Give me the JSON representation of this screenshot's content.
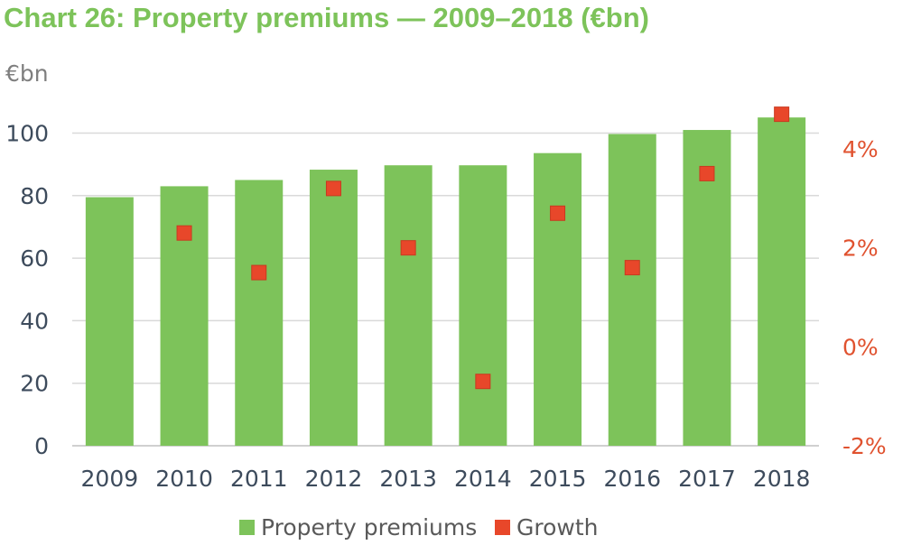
{
  "chart_data": {
    "type": "bar",
    "title": "Chart 26: Property premiums — 2009–2018 (€bn)",
    "y_unit_label": "€bn",
    "categories": [
      "2009",
      "2010",
      "2011",
      "2012",
      "2013",
      "2014",
      "2015",
      "2016",
      "2017",
      "2018"
    ],
    "series": [
      {
        "name": "Property premiums",
        "type": "bar",
        "axis": "left",
        "values": [
          79.5,
          83,
          85,
          88.3,
          89.7,
          89.7,
          93.6,
          99.7,
          101,
          105
        ]
      },
      {
        "name": "Growth",
        "type": "marker",
        "axis": "right",
        "unit": "%",
        "values": [
          null,
          2.3,
          1.5,
          3.2,
          2.0,
          -0.7,
          2.7,
          1.6,
          3.5,
          4.7
        ]
      }
    ],
    "y_left": {
      "min": 0,
      "max": 100,
      "ticks": [
        0,
        20,
        40,
        60,
        80,
        100
      ],
      "tick_labels": [
        "0",
        "20",
        "40",
        "60",
        "80",
        "100"
      ]
    },
    "y_right": {
      "min": -2,
      "max": 4,
      "ticks": [
        -2,
        0,
        2,
        4
      ],
      "tick_labels": [
        "-2%",
        "0%",
        "2%",
        "4%"
      ]
    },
    "grid": true,
    "legend_position": "bottom",
    "colors": {
      "bars": "#7dc35a",
      "markers": "#e8472a",
      "title": "#7dc35a",
      "left_axis": "#3d4b5c",
      "right_axis": "#e0522f",
      "unit_label": "#7f7f7f",
      "grid": "#d9d9d9"
    }
  }
}
